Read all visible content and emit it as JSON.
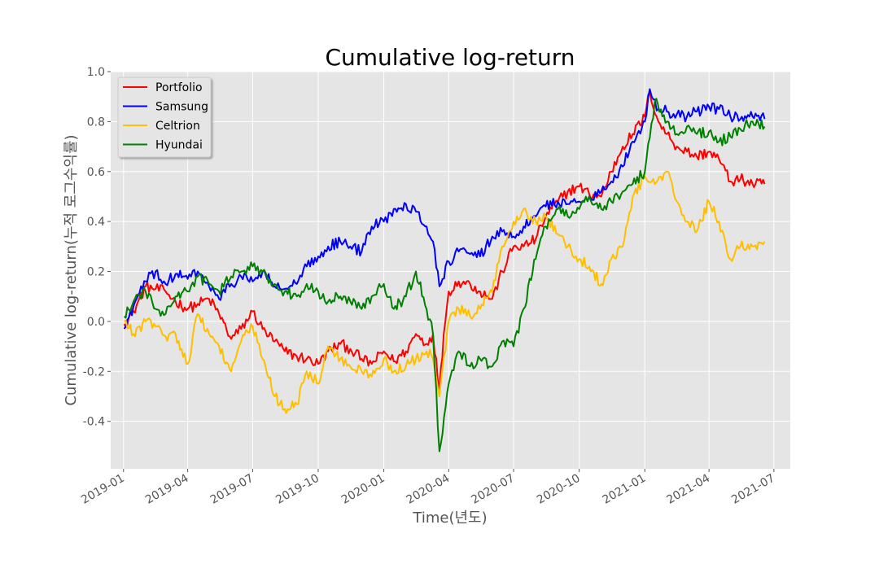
{
  "chart_data": {
    "type": "line",
    "title": "Cumulative log-return",
    "xlabel": "Time(년도)",
    "ylabel": "Cumulative log-return(누적 로그수익률)",
    "background": "#e5e5e5",
    "grid": true,
    "legend_position": "top-left",
    "x_ticks": [
      "2019-01",
      "2019-04",
      "2019-07",
      "2019-10",
      "2020-01",
      "2020-04",
      "2020-07",
      "2020-10",
      "2021-01",
      "2021-04",
      "2021-07"
    ],
    "y_ticks": [
      "-0.4",
      "-0.2",
      "0.0",
      "0.2",
      "0.4",
      "0.6",
      "0.8",
      "1.0"
    ],
    "xlim": [
      "2018-12-14",
      "2021-07-24"
    ],
    "ylim": [
      -0.59,
      1.0
    ],
    "series": [
      {
        "name": "Portfolio",
        "color": "#ff0000",
        "points": [
          [
            "2019-01-02",
            -0.01
          ],
          [
            "2019-01-15",
            0.04
          ],
          [
            "2019-02-01",
            0.14
          ],
          [
            "2019-02-15",
            0.13
          ],
          [
            "2019-03-01",
            0.12
          ],
          [
            "2019-03-15",
            0.08
          ],
          [
            "2019-04-01",
            0.05
          ],
          [
            "2019-04-15",
            0.07
          ],
          [
            "2019-05-01",
            0.09
          ],
          [
            "2019-05-15",
            0.03
          ],
          [
            "2019-06-01",
            -0.07
          ],
          [
            "2019-06-15",
            -0.03
          ],
          [
            "2019-07-01",
            0.04
          ],
          [
            "2019-07-15",
            -0.03
          ],
          [
            "2019-08-01",
            -0.08
          ],
          [
            "2019-08-15",
            -0.12
          ],
          [
            "2019-09-01",
            -0.14
          ],
          [
            "2019-09-15",
            -0.15
          ],
          [
            "2019-10-01",
            -0.17
          ],
          [
            "2019-10-15",
            -0.12
          ],
          [
            "2019-11-01",
            -0.09
          ],
          [
            "2019-11-15",
            -0.11
          ],
          [
            "2019-12-01",
            -0.15
          ],
          [
            "2019-12-15",
            -0.17
          ],
          [
            "2020-01-01",
            -0.12
          ],
          [
            "2020-01-15",
            -0.16
          ],
          [
            "2020-02-01",
            -0.12
          ],
          [
            "2020-02-15",
            -0.05
          ],
          [
            "2020-03-01",
            -0.09
          ],
          [
            "2020-03-10",
            -0.05
          ],
          [
            "2020-03-19",
            -0.28
          ],
          [
            "2020-03-25",
            -0.05
          ],
          [
            "2020-04-01",
            0.12
          ],
          [
            "2020-04-15",
            0.16
          ],
          [
            "2020-05-01",
            0.15
          ],
          [
            "2020-05-15",
            0.12
          ],
          [
            "2020-06-01",
            0.09
          ],
          [
            "2020-06-15",
            0.2
          ],
          [
            "2020-07-01",
            0.3
          ],
          [
            "2020-07-15",
            0.3
          ],
          [
            "2020-08-01",
            0.33
          ],
          [
            "2020-08-15",
            0.42
          ],
          [
            "2020-09-01",
            0.48
          ],
          [
            "2020-09-15",
            0.52
          ],
          [
            "2020-10-01",
            0.54
          ],
          [
            "2020-10-15",
            0.51
          ],
          [
            "2020-11-01",
            0.5
          ],
          [
            "2020-11-15",
            0.6
          ],
          [
            "2020-12-01",
            0.7
          ],
          [
            "2020-12-15",
            0.75
          ],
          [
            "2021-01-01",
            0.82
          ],
          [
            "2021-01-08",
            0.92
          ],
          [
            "2021-01-20",
            0.8
          ],
          [
            "2021-02-01",
            0.75
          ],
          [
            "2021-02-15",
            0.7
          ],
          [
            "2021-03-01",
            0.68
          ],
          [
            "2021-03-15",
            0.66
          ],
          [
            "2021-04-01",
            0.68
          ],
          [
            "2021-04-15",
            0.65
          ],
          [
            "2021-05-01",
            0.56
          ],
          [
            "2021-05-15",
            0.57
          ],
          [
            "2021-06-01",
            0.55
          ],
          [
            "2021-06-18",
            0.55
          ]
        ]
      },
      {
        "name": "Samsung",
        "color": "#0000ff",
        "points": [
          [
            "2019-01-02",
            -0.03
          ],
          [
            "2019-01-15",
            0.06
          ],
          [
            "2019-02-01",
            0.16
          ],
          [
            "2019-02-15",
            0.2
          ],
          [
            "2019-03-01",
            0.15
          ],
          [
            "2019-03-15",
            0.19
          ],
          [
            "2019-04-01",
            0.17
          ],
          [
            "2019-04-15",
            0.2
          ],
          [
            "2019-05-01",
            0.14
          ],
          [
            "2019-05-15",
            0.09
          ],
          [
            "2019-06-01",
            0.15
          ],
          [
            "2019-06-15",
            0.18
          ],
          [
            "2019-07-01",
            0.16
          ],
          [
            "2019-07-15",
            0.2
          ],
          [
            "2019-08-01",
            0.14
          ],
          [
            "2019-08-15",
            0.13
          ],
          [
            "2019-09-01",
            0.15
          ],
          [
            "2019-09-15",
            0.22
          ],
          [
            "2019-10-01",
            0.26
          ],
          [
            "2019-10-15",
            0.3
          ],
          [
            "2019-11-01",
            0.32
          ],
          [
            "2019-11-15",
            0.3
          ],
          [
            "2019-12-01",
            0.28
          ],
          [
            "2019-12-15",
            0.38
          ],
          [
            "2020-01-01",
            0.4
          ],
          [
            "2020-01-15",
            0.45
          ],
          [
            "2020-02-01",
            0.47
          ],
          [
            "2020-02-15",
            0.44
          ],
          [
            "2020-03-01",
            0.38
          ],
          [
            "2020-03-10",
            0.32
          ],
          [
            "2020-03-19",
            0.14
          ],
          [
            "2020-04-01",
            0.24
          ],
          [
            "2020-04-15",
            0.28
          ],
          [
            "2020-05-01",
            0.27
          ],
          [
            "2020-05-15",
            0.26
          ],
          [
            "2020-06-01",
            0.34
          ],
          [
            "2020-06-15",
            0.36
          ],
          [
            "2020-07-01",
            0.34
          ],
          [
            "2020-07-15",
            0.38
          ],
          [
            "2020-08-01",
            0.42
          ],
          [
            "2020-08-15",
            0.46
          ],
          [
            "2020-09-01",
            0.48
          ],
          [
            "2020-09-15",
            0.47
          ],
          [
            "2020-10-01",
            0.48
          ],
          [
            "2020-10-15",
            0.5
          ],
          [
            "2020-11-01",
            0.52
          ],
          [
            "2020-11-15",
            0.56
          ],
          [
            "2020-12-01",
            0.62
          ],
          [
            "2020-12-15",
            0.72
          ],
          [
            "2021-01-01",
            0.8
          ],
          [
            "2021-01-08",
            0.93
          ],
          [
            "2021-01-20",
            0.85
          ],
          [
            "2021-02-01",
            0.84
          ],
          [
            "2021-02-15",
            0.83
          ],
          [
            "2021-03-01",
            0.82
          ],
          [
            "2021-03-15",
            0.84
          ],
          [
            "2021-04-01",
            0.86
          ],
          [
            "2021-04-15",
            0.85
          ],
          [
            "2021-05-01",
            0.82
          ],
          [
            "2021-05-15",
            0.81
          ],
          [
            "2021-06-01",
            0.82
          ],
          [
            "2021-06-18",
            0.81
          ]
        ]
      },
      {
        "name": "Celtrion",
        "color": "#ffbf00",
        "points": [
          [
            "2019-01-02",
            0.0
          ],
          [
            "2019-01-15",
            -0.05
          ],
          [
            "2019-02-01",
            0.0
          ],
          [
            "2019-02-15",
            -0.02
          ],
          [
            "2019-03-01",
            -0.06
          ],
          [
            "2019-03-15",
            -0.05
          ],
          [
            "2019-04-01",
            -0.17
          ],
          [
            "2019-04-15",
            0.03
          ],
          [
            "2019-05-01",
            -0.05
          ],
          [
            "2019-05-15",
            -0.1
          ],
          [
            "2019-06-01",
            -0.2
          ],
          [
            "2019-06-15",
            -0.08
          ],
          [
            "2019-07-01",
            -0.02
          ],
          [
            "2019-07-15",
            -0.15
          ],
          [
            "2019-08-01",
            -0.3
          ],
          [
            "2019-08-15",
            -0.35
          ],
          [
            "2019-09-01",
            -0.33
          ],
          [
            "2019-09-15",
            -0.2
          ],
          [
            "2019-10-01",
            -0.25
          ],
          [
            "2019-10-15",
            -0.1
          ],
          [
            "2019-11-01",
            -0.15
          ],
          [
            "2019-11-15",
            -0.18
          ],
          [
            "2019-12-01",
            -0.2
          ],
          [
            "2019-12-15",
            -0.22
          ],
          [
            "2020-01-01",
            -0.15
          ],
          [
            "2020-01-15",
            -0.2
          ],
          [
            "2020-02-01",
            -0.18
          ],
          [
            "2020-02-15",
            -0.15
          ],
          [
            "2020-03-01",
            -0.12
          ],
          [
            "2020-03-10",
            -0.15
          ],
          [
            "2020-03-19",
            -0.3
          ],
          [
            "2020-04-01",
            0.0
          ],
          [
            "2020-04-15",
            0.05
          ],
          [
            "2020-05-01",
            0.02
          ],
          [
            "2020-05-15",
            0.05
          ],
          [
            "2020-06-01",
            0.12
          ],
          [
            "2020-06-15",
            0.3
          ],
          [
            "2020-07-01",
            0.4
          ],
          [
            "2020-07-15",
            0.45
          ],
          [
            "2020-08-01",
            0.4
          ],
          [
            "2020-08-15",
            0.42
          ],
          [
            "2020-09-01",
            0.35
          ],
          [
            "2020-09-15",
            0.3
          ],
          [
            "2020-10-01",
            0.25
          ],
          [
            "2020-10-15",
            0.22
          ],
          [
            "2020-11-01",
            0.15
          ],
          [
            "2020-11-15",
            0.25
          ],
          [
            "2020-12-01",
            0.3
          ],
          [
            "2020-12-15",
            0.5
          ],
          [
            "2021-01-01",
            0.58
          ],
          [
            "2021-01-15",
            0.55
          ],
          [
            "2021-02-01",
            0.6
          ],
          [
            "2021-02-15",
            0.48
          ],
          [
            "2021-03-01",
            0.4
          ],
          [
            "2021-03-15",
            0.36
          ],
          [
            "2021-04-01",
            0.48
          ],
          [
            "2021-04-15",
            0.4
          ],
          [
            "2021-05-01",
            0.25
          ],
          [
            "2021-05-15",
            0.3
          ],
          [
            "2021-06-01",
            0.3
          ],
          [
            "2021-06-18",
            0.32
          ]
        ]
      },
      {
        "name": "Hyundai",
        "color": "#008000",
        "points": [
          [
            "2019-01-02",
            0.02
          ],
          [
            "2019-01-15",
            0.08
          ],
          [
            "2019-02-01",
            0.12
          ],
          [
            "2019-02-15",
            0.05
          ],
          [
            "2019-03-01",
            0.03
          ],
          [
            "2019-03-15",
            0.1
          ],
          [
            "2019-04-01",
            0.12
          ],
          [
            "2019-04-15",
            0.18
          ],
          [
            "2019-05-01",
            0.15
          ],
          [
            "2019-05-15",
            0.12
          ],
          [
            "2019-06-01",
            0.18
          ],
          [
            "2019-06-15",
            0.2
          ],
          [
            "2019-07-01",
            0.22
          ],
          [
            "2019-07-15",
            0.2
          ],
          [
            "2019-08-01",
            0.15
          ],
          [
            "2019-08-15",
            0.12
          ],
          [
            "2019-09-01",
            0.1
          ],
          [
            "2019-09-15",
            0.15
          ],
          [
            "2019-10-01",
            0.12
          ],
          [
            "2019-10-15",
            0.08
          ],
          [
            "2019-11-01",
            0.1
          ],
          [
            "2019-11-15",
            0.08
          ],
          [
            "2019-12-01",
            0.05
          ],
          [
            "2019-12-15",
            0.1
          ],
          [
            "2020-01-01",
            0.15
          ],
          [
            "2020-01-15",
            0.05
          ],
          [
            "2020-02-01",
            0.1
          ],
          [
            "2020-02-15",
            0.2
          ],
          [
            "2020-03-01",
            0.05
          ],
          [
            "2020-03-10",
            -0.05
          ],
          [
            "2020-03-19",
            -0.52
          ],
          [
            "2020-04-01",
            -0.25
          ],
          [
            "2020-04-15",
            -0.12
          ],
          [
            "2020-05-01",
            -0.18
          ],
          [
            "2020-05-15",
            -0.15
          ],
          [
            "2020-06-01",
            -0.18
          ],
          [
            "2020-06-15",
            -0.08
          ],
          [
            "2020-07-01",
            -0.1
          ],
          [
            "2020-07-15",
            0.05
          ],
          [
            "2020-08-01",
            0.25
          ],
          [
            "2020-08-15",
            0.38
          ],
          [
            "2020-09-01",
            0.45
          ],
          [
            "2020-09-15",
            0.42
          ],
          [
            "2020-10-01",
            0.45
          ],
          [
            "2020-10-15",
            0.5
          ],
          [
            "2020-11-01",
            0.45
          ],
          [
            "2020-11-15",
            0.48
          ],
          [
            "2020-12-01",
            0.52
          ],
          [
            "2020-12-15",
            0.55
          ],
          [
            "2021-01-01",
            0.6
          ],
          [
            "2021-01-15",
            0.88
          ],
          [
            "2021-02-01",
            0.8
          ],
          [
            "2021-02-15",
            0.75
          ],
          [
            "2021-03-01",
            0.78
          ],
          [
            "2021-03-15",
            0.75
          ],
          [
            "2021-04-01",
            0.76
          ],
          [
            "2021-04-15",
            0.72
          ],
          [
            "2021-05-01",
            0.74
          ],
          [
            "2021-05-15",
            0.77
          ],
          [
            "2021-06-01",
            0.8
          ],
          [
            "2021-06-18",
            0.78
          ]
        ]
      }
    ]
  }
}
